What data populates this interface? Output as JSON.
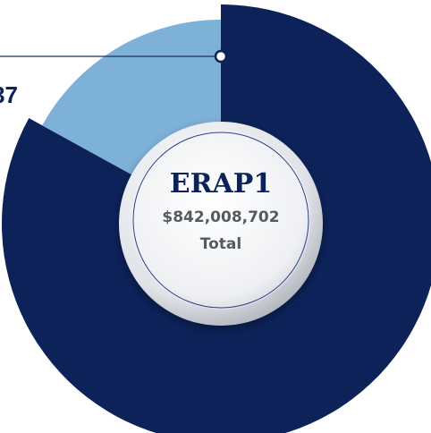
{
  "chart_data": {
    "type": "donut",
    "title": "ERAP1",
    "subtitle": "$842,008,702",
    "center_label": "Total",
    "values": [
      83,
      17
    ],
    "colors": [
      "#0c2259",
      "#7eb1d8"
    ],
    "annotations": [
      "37"
    ]
  }
}
